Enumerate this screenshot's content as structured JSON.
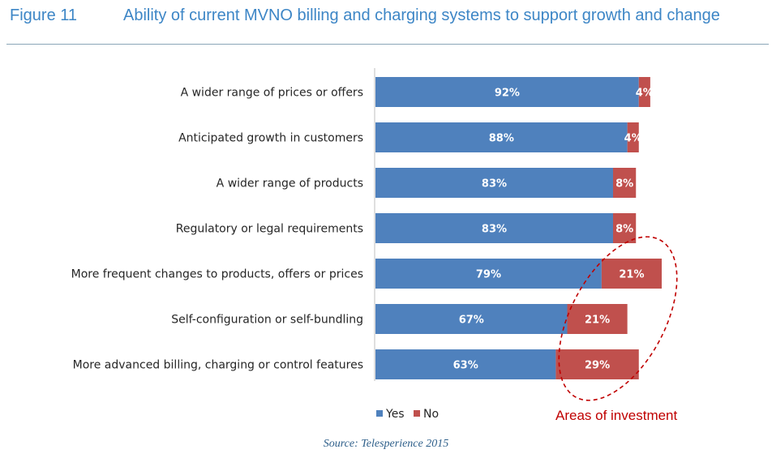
{
  "header": {
    "figure_number": "Figure 11",
    "title": "Ability of current MVNO billing and charging systems to support growth and change"
  },
  "source": "Source: Telesperience 2015",
  "annotation": "Areas of investment",
  "colors": {
    "yes": "#4f81bd",
    "no": "#c0504d",
    "header": "#3d86c6",
    "annotation": "#c00000"
  },
  "chart_data": {
    "type": "bar",
    "orientation": "horizontal",
    "stacked": true,
    "title": "Ability of current MVNO billing and charging systems to support growth and change",
    "categories": [
      "A wider range of prices or offers",
      "Anticipated growth in customers",
      "A wider range of products",
      "Regulatory or legal requirements",
      "More frequent changes to products, offers or prices",
      "Self-configuration or self-bundling",
      "More advanced billing, charging or control features"
    ],
    "series": [
      {
        "name": "Yes",
        "values": [
          92,
          88,
          83,
          83,
          79,
          67,
          63
        ],
        "labels": [
          "92%",
          "88%",
          "83%",
          "83%",
          "79%",
          "67%",
          "63%"
        ]
      },
      {
        "name": "No",
        "values": [
          4,
          4,
          8,
          8,
          21,
          21,
          29
        ],
        "labels": [
          "4%",
          "4%",
          "8%",
          "8%",
          "21%",
          "21%",
          "29%"
        ]
      }
    ],
    "xlim": [
      0,
      100
    ],
    "grid": false,
    "legend": "bottom"
  }
}
